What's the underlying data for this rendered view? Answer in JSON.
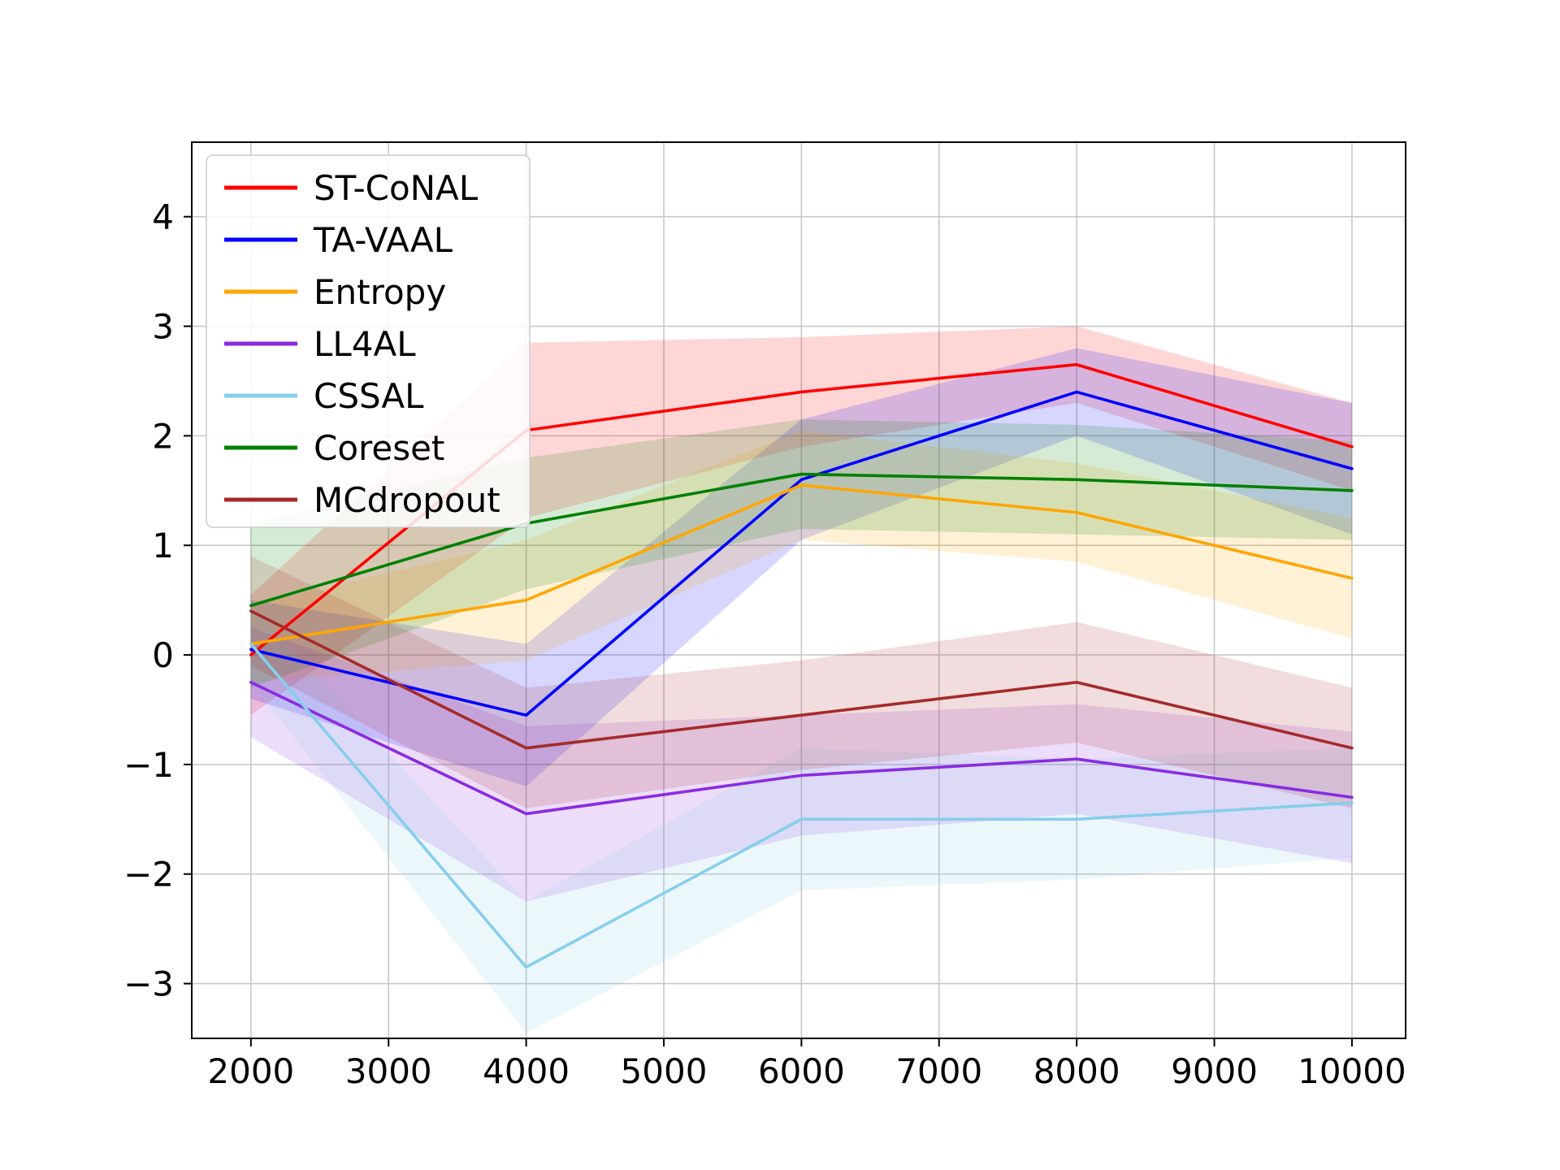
{
  "chart_data": {
    "type": "line",
    "title": "",
    "xlabel": "",
    "ylabel": "",
    "x": [
      2000,
      4000,
      6000,
      8000,
      10000
    ],
    "xlim": [
      1570,
      10390
    ],
    "ylim": [
      -3.5,
      4.68
    ],
    "xticks": [
      2000,
      3000,
      4000,
      5000,
      6000,
      7000,
      8000,
      9000,
      10000
    ],
    "xtick_labels": [
      "2000",
      "3000",
      "4000",
      "5000",
      "6000",
      "7000",
      "8000",
      "9000",
      "10000"
    ],
    "yticks": [
      -3,
      -2,
      -1,
      0,
      1,
      2,
      3,
      4
    ],
    "ytick_labels": [
      "−3",
      "−2",
      "−1",
      "0",
      "1",
      "2",
      "3",
      "4"
    ],
    "grid": true,
    "grid_color": "#c8c8c8",
    "legend_position": "upper left",
    "band_alpha": 0.16,
    "series": [
      {
        "name": "ST-CoNAL",
        "color": "#ff0000",
        "values": [
          0.0,
          2.05,
          2.4,
          2.65,
          1.9
        ],
        "band": [
          0.55,
          0.8,
          0.5,
          0.35,
          0.4
        ]
      },
      {
        "name": "TA-VAAL",
        "color": "#0000ff",
        "values": [
          0.05,
          -0.55,
          1.6,
          2.4,
          1.7
        ],
        "band": [
          0.45,
          0.65,
          0.55,
          0.4,
          0.6
        ]
      },
      {
        "name": "Entropy",
        "color": "#ffa500",
        "values": [
          0.1,
          0.5,
          1.55,
          1.3,
          0.7
        ],
        "band": [
          0.35,
          0.55,
          0.5,
          0.45,
          0.55
        ]
      },
      {
        "name": "LL4AL",
        "color": "#8a2be2",
        "values": [
          -0.25,
          -1.45,
          -1.1,
          -0.95,
          -1.3
        ],
        "band": [
          0.5,
          0.8,
          0.55,
          0.5,
          0.6
        ]
      },
      {
        "name": "CSSAL",
        "color": "#87ceeb",
        "values": [
          0.1,
          -2.85,
          -1.5,
          -1.5,
          -1.35
        ],
        "band": [
          0.35,
          0.6,
          0.65,
          0.55,
          0.5
        ]
      },
      {
        "name": "Coreset",
        "color": "#008000",
        "values": [
          0.45,
          1.2,
          1.65,
          1.6,
          1.5
        ],
        "band": [
          0.75,
          0.6,
          0.5,
          0.5,
          0.45
        ]
      },
      {
        "name": "MCdropout",
        "color": "#a52a2a",
        "values": [
          0.4,
          -0.85,
          -0.55,
          -0.25,
          -0.85
        ],
        "band": [
          0.5,
          0.55,
          0.5,
          0.55,
          0.55
        ]
      }
    ]
  }
}
